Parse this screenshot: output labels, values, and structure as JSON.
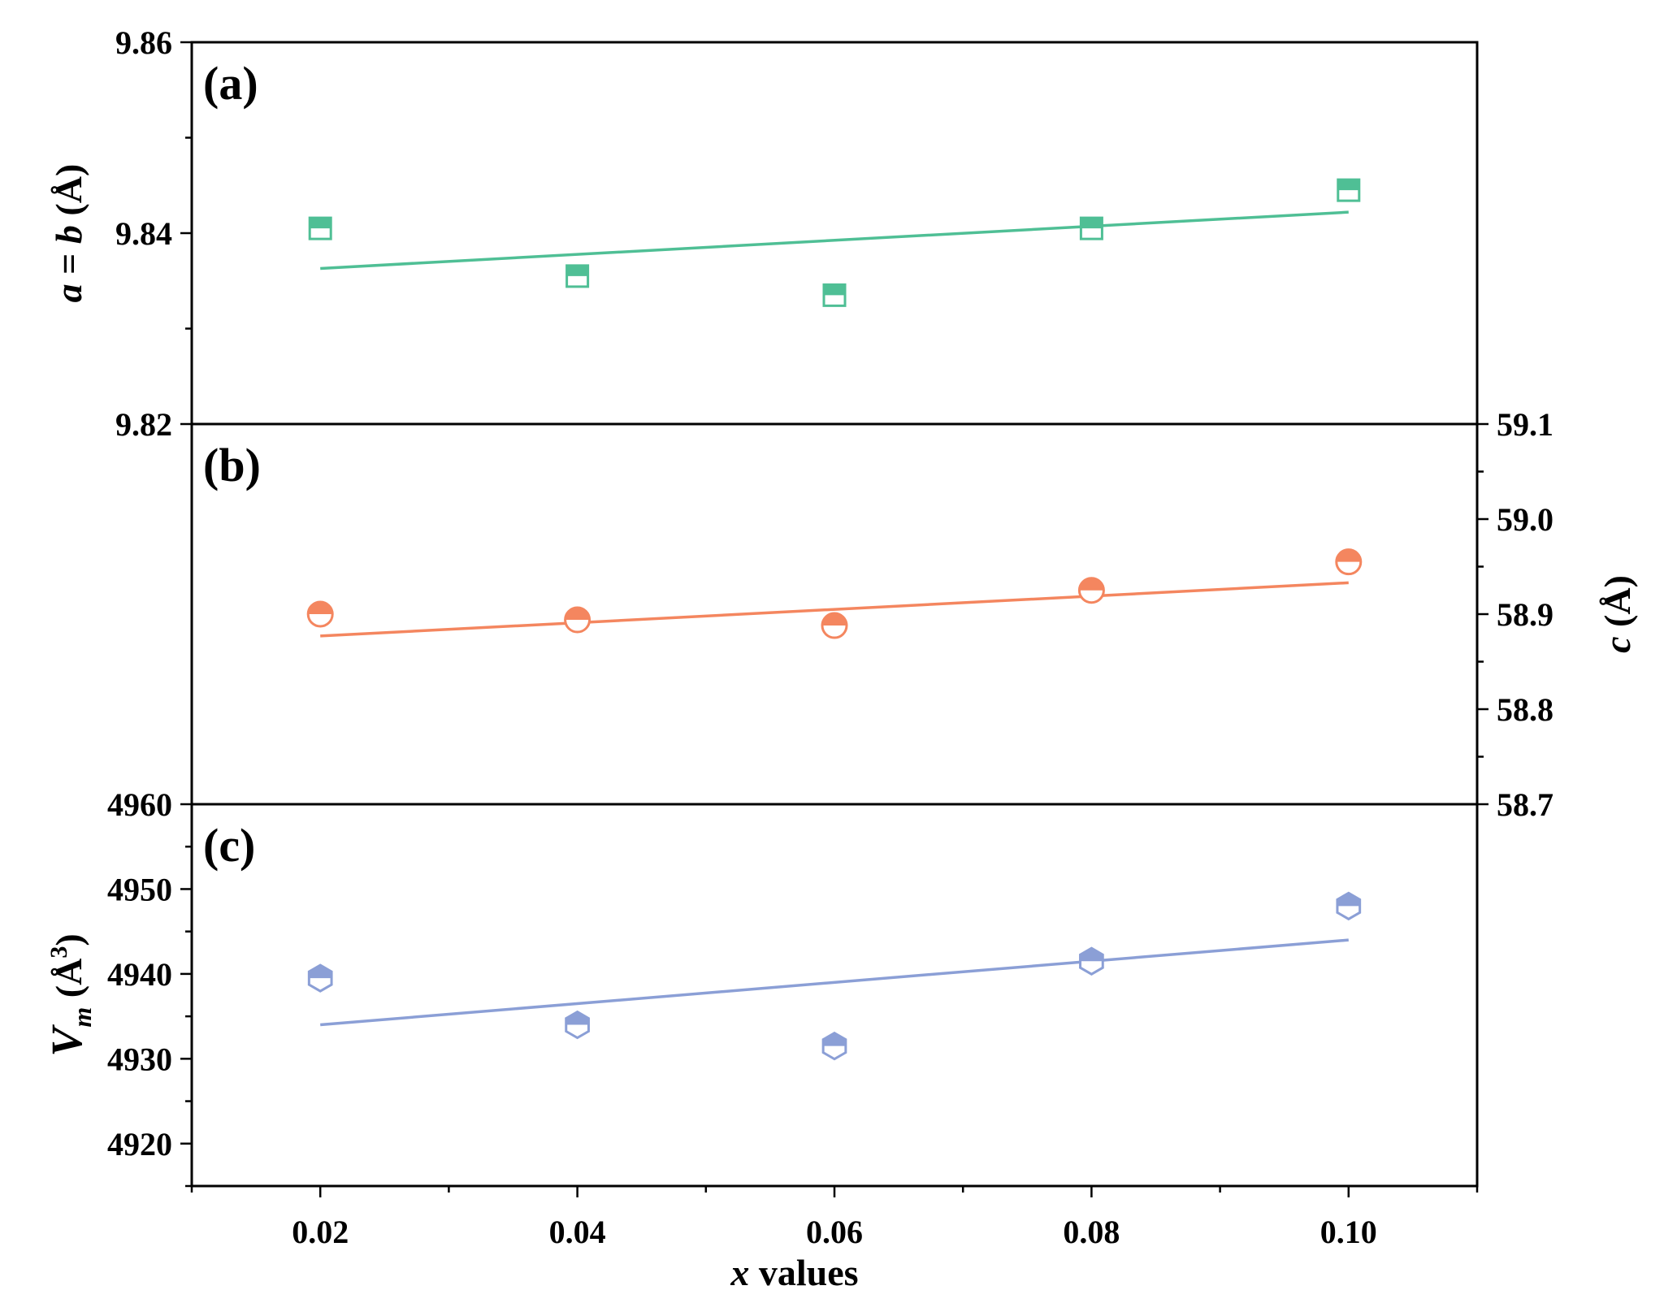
{
  "chart_data": [
    {
      "type": "scatter",
      "panel_label": "(a)",
      "ylabel": {
        "base": "a = b (",
        "unit": "Å",
        "close": ")"
      },
      "y_axis_side": "left",
      "ylim": [
        9.82,
        9.86
      ],
      "yticks": [
        9.82,
        9.84,
        9.86
      ],
      "ytick_labels": [
        "9.82",
        "9.84",
        "9.86"
      ],
      "color": "#4fbf95",
      "marker": "half-filled-square",
      "x": [
        0.02,
        0.04,
        0.06,
        0.08,
        0.1
      ],
      "values": [
        9.8405,
        9.8355,
        9.8335,
        9.8405,
        9.8445
      ],
      "fit": {
        "x": [
          0.02,
          0.1
        ],
        "y": [
          9.8363,
          9.8422
        ]
      }
    },
    {
      "type": "scatter",
      "panel_label": "(b)",
      "ylabel": {
        "base": "c (",
        "unit": "Å",
        "close": ")"
      },
      "y_axis_side": "right",
      "ylim": [
        58.7,
        59.1
      ],
      "yticks": [
        58.7,
        58.8,
        58.9,
        59.0,
        59.1
      ],
      "ytick_labels": [
        "58.7",
        "58.8",
        "58.9",
        "59.0",
        "59.1"
      ],
      "color": "#f4865f",
      "marker": "half-filled-circle",
      "x": [
        0.02,
        0.04,
        0.06,
        0.08,
        0.1
      ],
      "values": [
        58.9,
        58.894,
        58.888,
        58.925,
        58.955
      ],
      "fit": {
        "x": [
          0.02,
          0.1
        ],
        "y": [
          58.877,
          58.933
        ]
      }
    },
    {
      "type": "scatter",
      "panel_label": "(c)",
      "ylabel": {
        "base": "V",
        "sub": "m",
        "open": " (",
        "unit": "Å",
        "sup": "3",
        "close": ")"
      },
      "y_axis_side": "left",
      "ylim": [
        4915,
        4960
      ],
      "yticks": [
        4920,
        4930,
        4940,
        4950,
        4960
      ],
      "ytick_labels": [
        "4920",
        "4930",
        "4940",
        "4950",
        "4960"
      ],
      "color": "#8b9fd6",
      "marker": "half-filled-hexagon",
      "x": [
        0.02,
        0.04,
        0.06,
        0.08,
        0.1
      ],
      "values": [
        4939.5,
        4934.0,
        4931.5,
        4941.5,
        4948.0
      ],
      "fit": {
        "x": [
          0.02,
          0.1
        ],
        "y": [
          4934.0,
          4944.0
        ]
      }
    }
  ],
  "xaxis": {
    "label_var": "x",
    "label_rest": " values",
    "xlim": [
      0.01,
      0.11
    ],
    "xticks": [
      0.02,
      0.04,
      0.06,
      0.08,
      0.1
    ],
    "xtick_labels": [
      "0.02",
      "0.04",
      "0.06",
      "0.08",
      "0.10"
    ]
  }
}
